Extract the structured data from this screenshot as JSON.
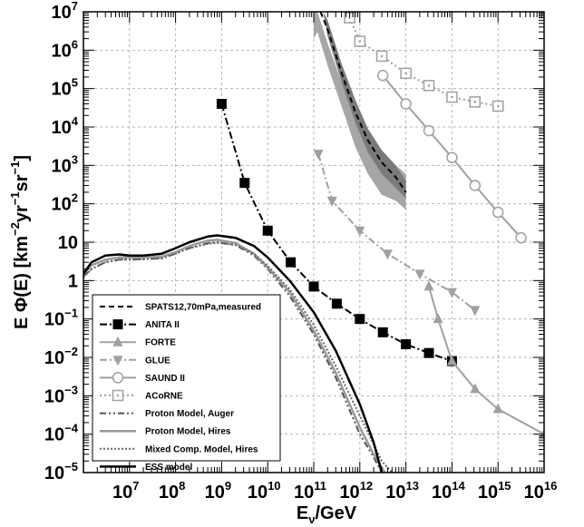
{
  "chart_data": {
    "type": "line",
    "title": "",
    "xlabel": {
      "base": "E",
      "sub": "ν",
      "rest": "/GeV"
    },
    "ylabel": {
      "pre": "E Φ(E) [km",
      "e1": "−2",
      "mid": "yr",
      "e2": "−1",
      "mid2": "sr",
      "e3": "−1",
      "post": "]"
    },
    "x_scale": "log",
    "y_scale": "log",
    "xlim": [
      1000000.0,
      1e+16
    ],
    "ylim": [
      1e-05,
      10000000.0
    ],
    "grid": true,
    "legend_position": "bottom-left",
    "x_ticks": [
      {
        "value": 10000000.0,
        "base": "10",
        "exp": "7"
      },
      {
        "value": 100000000.0,
        "base": "10",
        "exp": "8"
      },
      {
        "value": 1000000000.0,
        "base": "10",
        "exp": "9"
      },
      {
        "value": 10000000000.0,
        "base": "10",
        "exp": "10"
      },
      {
        "value": 100000000000.0,
        "base": "10",
        "exp": "11"
      },
      {
        "value": 1000000000000.0,
        "base": "10",
        "exp": "12"
      },
      {
        "value": 10000000000000.0,
        "base": "10",
        "exp": "13"
      },
      {
        "value": 100000000000000.0,
        "base": "10",
        "exp": "14"
      },
      {
        "value": 1000000000000000.0,
        "base": "10",
        "exp": "15"
      },
      {
        "value": 1e+16,
        "base": "10",
        "exp": "16"
      }
    ],
    "y_ticks": [
      {
        "value": 1e-05,
        "base": "10",
        "exp": "−5"
      },
      {
        "value": 0.0001,
        "base": "10",
        "exp": "−4"
      },
      {
        "value": 0.001,
        "base": "10",
        "exp": "−3"
      },
      {
        "value": 0.01,
        "base": "10",
        "exp": "−2"
      },
      {
        "value": 0.1,
        "base": "10",
        "exp": "−1"
      },
      {
        "value": 1,
        "base": "1",
        "exp": ""
      },
      {
        "value": 10,
        "base": "10",
        "exp": ""
      },
      {
        "value": 100,
        "base": "10",
        "exp": "2"
      },
      {
        "value": 1000,
        "base": "10",
        "exp": "3"
      },
      {
        "value": 10000.0,
        "base": "10",
        "exp": "4"
      },
      {
        "value": 100000.0,
        "base": "10",
        "exp": "5"
      },
      {
        "value": 1000000.0,
        "base": "10",
        "exp": "6"
      },
      {
        "value": 10000000.0,
        "base": "10",
        "exp": "7"
      }
    ],
    "band": {
      "legend_ref": "SPATS12,70mPa,measured",
      "outer": {
        "x": [
          100000000000.0,
          120000000000.0,
          200000000000.0,
          400000000000.0,
          800000000000.0,
          1500000000000.0,
          3000000000000.0,
          6000000000000.0,
          10000000000000.0
        ],
        "upper": [
          10000000.0,
          10000000.0,
          1500000.0,
          150000.0,
          20000.0,
          5000.0,
          1700.0,
          1000.0,
          600.0
        ],
        "lower": [
          2000000.0,
          3000000.0,
          400000.0,
          35000.0,
          3000.0,
          600.0,
          170.0,
          120.0,
          70.0
        ]
      },
      "inner": {
        "x": [
          160000000000.0,
          200000000000.0,
          400000000000.0,
          800000000000.0,
          1500000000000.0,
          3000000000000.0,
          6000000000000.0,
          10000000000000.0
        ],
        "upper": [
          10000000.0,
          6000000.0,
          450000.0,
          50000.0,
          9000.0,
          2500.0,
          1000.0,
          400.0
        ],
        "lower": [
          10000000.0,
          2300000.0,
          150000.0,
          13000.0,
          2200.0,
          600.0,
          260.0,
          140.0
        ]
      },
      "outer_color": "#a6a6a6",
      "inner_color": "#7a7a7a"
    },
    "series": [
      {
        "name": "SPATS12,70mPa,measured",
        "color": "#000000",
        "dash": "6,4",
        "width": 2,
        "marker": "none",
        "x": [
          140000000000.0,
          200000000000.0,
          400000000000.0,
          800000000000.0,
          1500000000000.0,
          3000000000000.0,
          6000000000000.0,
          10000000000000.0
        ],
        "y": [
          10000000.0,
          3500000.0,
          260000.0,
          24000.0,
          4500.0,
          1200.0,
          500.0,
          200.0
        ]
      },
      {
        "name": "ANITA II",
        "color": "#000000",
        "dash": "8,3,2,3",
        "width": 2,
        "marker": "square-filled",
        "x": [
          1000000000.0,
          3160000000.0,
          10000000000.0,
          31600000000.0,
          100000000000.0,
          316000000000.0,
          1000000000000.0,
          3160000000000.0,
          10000000000000.0,
          31600000000000.0,
          100000000000000.0
        ],
        "y": [
          40000.0,
          350.0,
          20.0,
          3.0,
          0.7,
          0.25,
          0.1,
          0.045,
          0.022,
          0.013,
          0.008
        ]
      },
      {
        "name": "FORTE",
        "color": "#a0a0a0",
        "dash": "",
        "width": 2,
        "marker": "triangle-up",
        "x": [
          31600000000000.0,
          50000000000000.0,
          100000000000000.0,
          316000000000000.0,
          1000000000000000.0,
          1e+16
        ],
        "y": [
          0.7,
          0.1,
          0.008,
          0.0015,
          0.00045,
          0.0001
        ]
      },
      {
        "name": "GLUE",
        "color": "#a0a0a0",
        "dash": "8,3,2,3",
        "width": 2,
        "marker": "triangle-down",
        "x": [
          126000000000.0,
          250000000000.0,
          1000000000000.0,
          4000000000000.0,
          20000000000000.0,
          100000000000000.0,
          316000000000000.0
        ],
        "y": [
          2000.0,
          120.0,
          20.0,
          5.0,
          1.5,
          0.5,
          0.17
        ]
      },
      {
        "name": "SAUND II",
        "color": "#a0a0a0",
        "dash": "",
        "width": 2,
        "marker": "circle-open",
        "x": [
          3160000000000.0,
          10000000000000.0,
          31600000000000.0,
          100000000000000.0,
          316000000000000.0,
          1000000000000000.0,
          3160000000000000.0
        ],
        "y": [
          220000.0,
          40000.0,
          8000.0,
          1600.0,
          300.0,
          60.0,
          13.0
        ]
      },
      {
        "name": "ACoRNE",
        "color": "#a0a0a0",
        "dash": "2,3",
        "width": 2,
        "marker": "square-dot",
        "x": [
          600000000000.0,
          1000000000000.0,
          3000000000000.0,
          10000000000000.0,
          31600000000000.0,
          100000000000000.0,
          316000000000000.0,
          1000000000000000.0
        ],
        "y": [
          7000000.0,
          1700000.0,
          700000.0,
          250000.0,
          120000.0,
          60000.0,
          45000.0,
          35000.0
        ]
      },
      {
        "name": "Proton Model, Auger",
        "color": "#555555",
        "dash": "7,3,2,3,2,3",
        "width": 2,
        "marker": "none",
        "x": [
          1000000.0,
          1500000.0,
          3000000.0,
          6000000.0,
          10000000.0,
          20000000.0,
          50000000.0,
          100000000.0,
          200000000.0,
          500000000.0,
          800000000.0,
          2000000000.0,
          5000000000.0,
          10000000000.0,
          30000000000.0,
          100000000000.0,
          300000000000.0,
          1000000000000.0,
          2000000000000.0,
          3000000000000.0
        ],
        "y": [
          1.3,
          2.0,
          3.0,
          3.5,
          3.5,
          3.6,
          3.8,
          5.0,
          7.0,
          9.5,
          10,
          8.5,
          4.5,
          2.0,
          0.4,
          0.04,
          0.003,
          0.0001,
          2.5e-05,
          1e-05
        ]
      },
      {
        "name": "Proton Model, Hires",
        "color": "#9a9a9a",
        "dash": "",
        "width": 2.5,
        "marker": "none",
        "x": [
          1000000.0,
          1500000.0,
          3000000.0,
          6000000.0,
          10000000.0,
          20000000.0,
          50000000.0,
          100000000.0,
          200000000.0,
          500000000.0,
          800000000.0,
          2000000000.0,
          5000000000.0,
          10000000000.0,
          30000000000.0,
          100000000000.0,
          300000000000.0,
          1000000000000.0,
          2000000000000.0,
          3500000000000.0
        ],
        "y": [
          1.5,
          2.5,
          3.5,
          4.0,
          4.0,
          4.0,
          4.2,
          5.5,
          8.0,
          11,
          11.5,
          9.5,
          5.0,
          2.2,
          0.5,
          0.05,
          0.004,
          0.00015,
          3e-05,
          1e-05
        ]
      },
      {
        "name": "Mixed Comp. Model, Hires",
        "color": "#666666",
        "dash": "2,2",
        "width": 2,
        "marker": "none",
        "x": [
          1000000.0,
          1500000.0,
          3000000.0,
          6000000.0,
          10000000.0,
          20000000.0,
          50000000.0,
          100000000.0,
          200000000.0,
          500000000.0,
          800000000.0,
          2000000000.0,
          5000000000.0,
          10000000000.0,
          30000000000.0,
          100000000000.0,
          300000000000.0,
          1000000000000.0,
          3000000000000.0,
          5000000000000.0
        ],
        "y": [
          1.2,
          2.0,
          3.0,
          3.5,
          3.6,
          3.6,
          3.8,
          5.0,
          7.0,
          9.0,
          9.5,
          8.5,
          5.0,
          2.4,
          0.6,
          0.07,
          0.006,
          0.0003,
          2e-05,
          1e-05
        ]
      },
      {
        "name": "ESS model",
        "color": "#000000",
        "dash": "",
        "width": 2.5,
        "marker": "none",
        "x": [
          1000000.0,
          1500000.0,
          3000000.0,
          6000000.0,
          10000000.0,
          20000000.0,
          50000000.0,
          100000000.0,
          200000000.0,
          500000000.0,
          800000000.0,
          2000000000.0,
          5000000000.0,
          10000000000.0,
          30000000000.0,
          100000000000.0,
          300000000000.0,
          1000000000000.0,
          2000000000000.0,
          3000000000000.0
        ],
        "y": [
          1.5,
          3.0,
          4.5,
          4.8,
          4.5,
          4.5,
          5.0,
          7.0,
          10,
          14,
          15,
          13,
          8.0,
          4.0,
          1.0,
          0.15,
          0.015,
          0.0006,
          6e-05,
          1e-05
        ]
      }
    ]
  }
}
